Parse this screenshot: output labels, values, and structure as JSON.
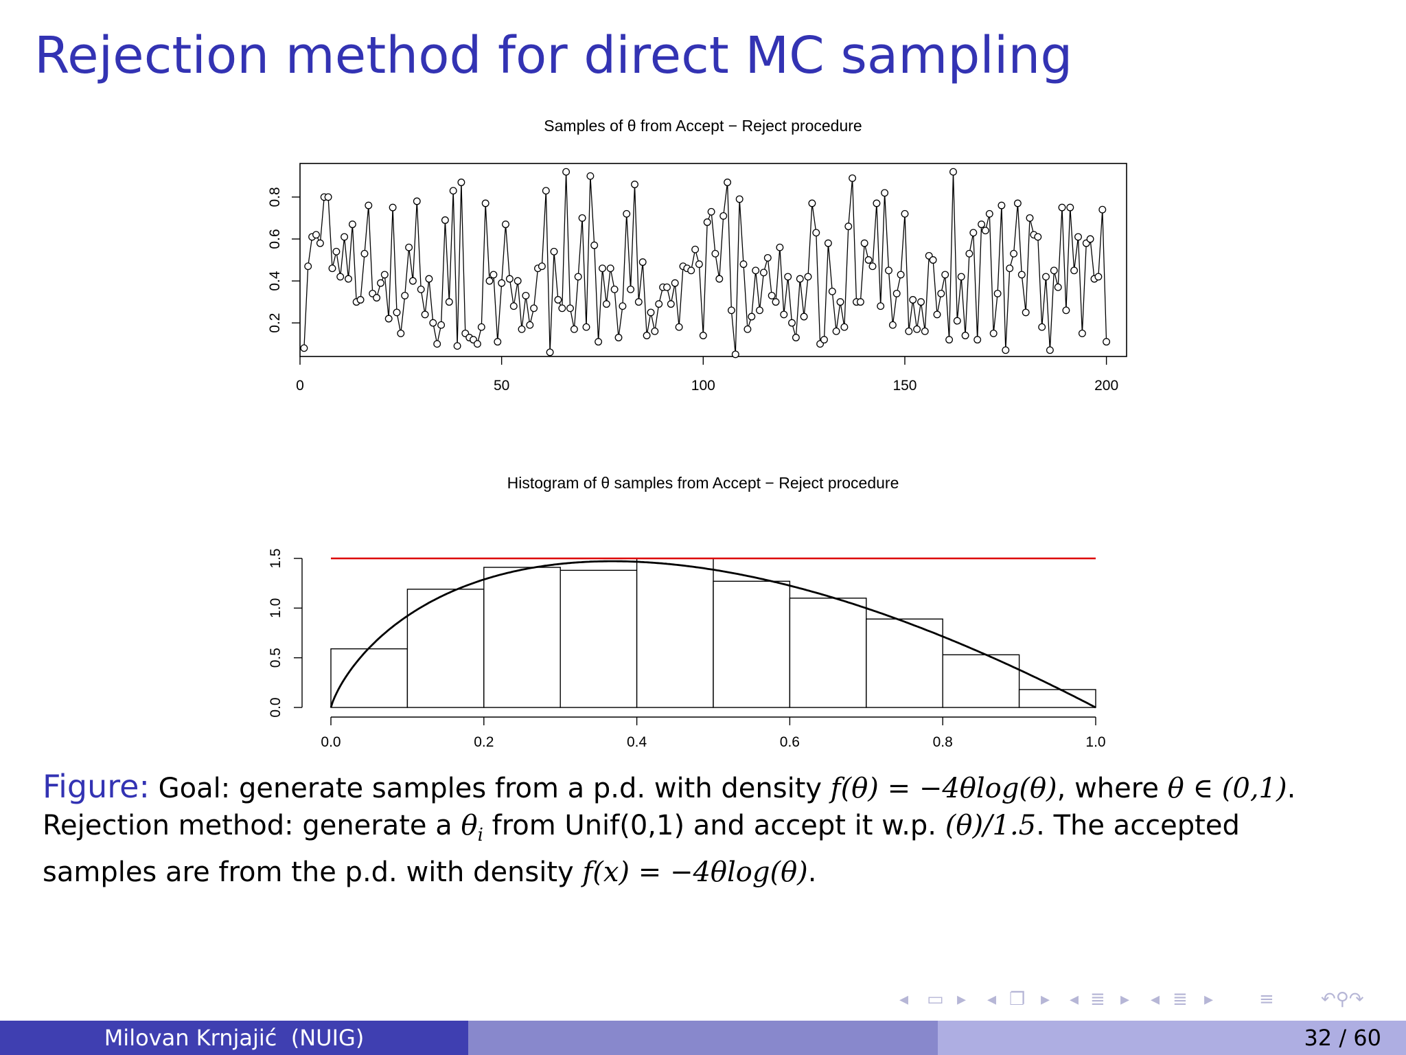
{
  "slide": {
    "title": "Rejection method for direct MC sampling",
    "footer_author": "Milovan Krnjajić  (NUIG)",
    "page_current": 32,
    "page_total": 60,
    "page_label": "32 / 60"
  },
  "caption": {
    "label": "Figure:",
    "line1_text": "Goal: generate samples from a p.d. with density ",
    "line1_formula": "f(θ) = −4θlog(θ)",
    "line1_mid": ", where ",
    "line1_domain": "θ ∈ (0,1)",
    "line1_end": ".",
    "line2_text": "Rejection method: generate a ",
    "line2_var": "θ",
    "line2_sub": "i",
    "line2_mid": " from Unif(0,1) and accept it w.p. ",
    "line2_prob": "(θ)/1.5",
    "line2_end": ". The accepted",
    "line3_text": "samples are from the p.d. with density ",
    "line3_formula": "f(x) = −4θlog(θ)",
    "line3_end": "."
  },
  "nav_icons": [
    "nav-frame-left-icon",
    "nav-frame-icon",
    "nav-frame-right-icon",
    "nav-slide-left-icon",
    "nav-slide-icon",
    "nav-slide-right-icon",
    "nav-section-left-icon",
    "nav-section-icon",
    "nav-section-right-icon",
    "nav-subsection-left-icon",
    "nav-subsection-icon",
    "nav-subsection-right-icon",
    "nav-toc-icon",
    "nav-search-icon"
  ],
  "colors": {
    "title": "#3333b3",
    "density_line": "#000000",
    "envelope_line": "#dd0000"
  },
  "chart_data": [
    {
      "type": "line",
      "title": "Samples of θ from Accept − Reject procedure",
      "xlim": [
        0,
        205
      ],
      "ylim": [
        0.04,
        0.96
      ],
      "xticks": [
        "0",
        "50",
        "100",
        "150",
        "200"
      ],
      "xtick_values": [
        0,
        50,
        100,
        150,
        200
      ],
      "yticks": [
        "0.2",
        "0.4",
        "0.6",
        "0.8"
      ],
      "ytick_values": [
        0.2,
        0.4,
        0.6,
        0.8
      ],
      "markers": "open-circle",
      "y": [
        0.08,
        0.47,
        0.61,
        0.62,
        0.58,
        0.8,
        0.8,
        0.46,
        0.54,
        0.42,
        0.61,
        0.41,
        0.67,
        0.3,
        0.31,
        0.53,
        0.76,
        0.34,
        0.32,
        0.39,
        0.43,
        0.22,
        0.75,
        0.25,
        0.15,
        0.33,
        0.56,
        0.4,
        0.78,
        0.36,
        0.24,
        0.41,
        0.2,
        0.1,
        0.19,
        0.69,
        0.3,
        0.83,
        0.09,
        0.87,
        0.15,
        0.13,
        0.12,
        0.1,
        0.18,
        0.77,
        0.4,
        0.43,
        0.11,
        0.39,
        0.67,
        0.41,
        0.28,
        0.4,
        0.17,
        0.33,
        0.19,
        0.27,
        0.46,
        0.47,
        0.83,
        0.06,
        0.54,
        0.31,
        0.27,
        0.92,
        0.27,
        0.17,
        0.42,
        0.7,
        0.18,
        0.9,
        0.57,
        0.11,
        0.46,
        0.29,
        0.46,
        0.36,
        0.13,
        0.28,
        0.72,
        0.36,
        0.86,
        0.3,
        0.49,
        0.14,
        0.25,
        0.16,
        0.29,
        0.37,
        0.37,
        0.29,
        0.39,
        0.18,
        0.47,
        0.46,
        0.45,
        0.55,
        0.48,
        0.14,
        0.68,
        0.73,
        0.53,
        0.41,
        0.71,
        0.87,
        0.26,
        0.05,
        0.79,
        0.48,
        0.17,
        0.23,
        0.45,
        0.26,
        0.44,
        0.51,
        0.33,
        0.3,
        0.56,
        0.24,
        0.42,
        0.2,
        0.13,
        0.41,
        0.23,
        0.42,
        0.77,
        0.63,
        0.1,
        0.12,
        0.58,
        0.35,
        0.16,
        0.3,
        0.18,
        0.66,
        0.89,
        0.3,
        0.3,
        0.58,
        0.5,
        0.47,
        0.77,
        0.28,
        0.82,
        0.45,
        0.19,
        0.34,
        0.43,
        0.72,
        0.16,
        0.31,
        0.17,
        0.3,
        0.16,
        0.52,
        0.5,
        0.24,
        0.34,
        0.43,
        0.12,
        0.92,
        0.21,
        0.42,
        0.14,
        0.53,
        0.63,
        0.12,
        0.67,
        0.64,
        0.72,
        0.15,
        0.34,
        0.76,
        0.07,
        0.46,
        0.53,
        0.77,
        0.43,
        0.25,
        0.7,
        0.62,
        0.61,
        0.18,
        0.42,
        0.07,
        0.45,
        0.37,
        0.75,
        0.26,
        0.75,
        0.45,
        0.61,
        0.15,
        0.58,
        0.6,
        0.41,
        0.42,
        0.74,
        0.11
      ]
    },
    {
      "type": "bar",
      "title": "Histogram of θ samples from Accept − Reject procedure",
      "xlim": [
        -0.04,
        1.04
      ],
      "ylim": [
        0,
        1.55
      ],
      "xticks": [
        "0.0",
        "0.2",
        "0.4",
        "0.6",
        "0.8",
        "1.0"
      ],
      "xtick_values": [
        0,
        0.2,
        0.4,
        0.6,
        0.8,
        1.0
      ],
      "yticks": [
        "0.0",
        "0.5",
        "1.0",
        "1.5"
      ],
      "ytick_values": [
        0,
        0.5,
        1.0,
        1.5
      ],
      "bin_edges": [
        0,
        0.1,
        0.2,
        0.3,
        0.4,
        0.5,
        0.6,
        0.7,
        0.8,
        0.9,
        1.0
      ],
      "values": [
        0.59,
        1.19,
        1.41,
        1.38,
        1.5,
        1.27,
        1.1,
        0.89,
        0.53,
        0.18
      ],
      "density_curve": "f(θ) = −4θlog(θ)",
      "envelope": 1.5
    }
  ]
}
